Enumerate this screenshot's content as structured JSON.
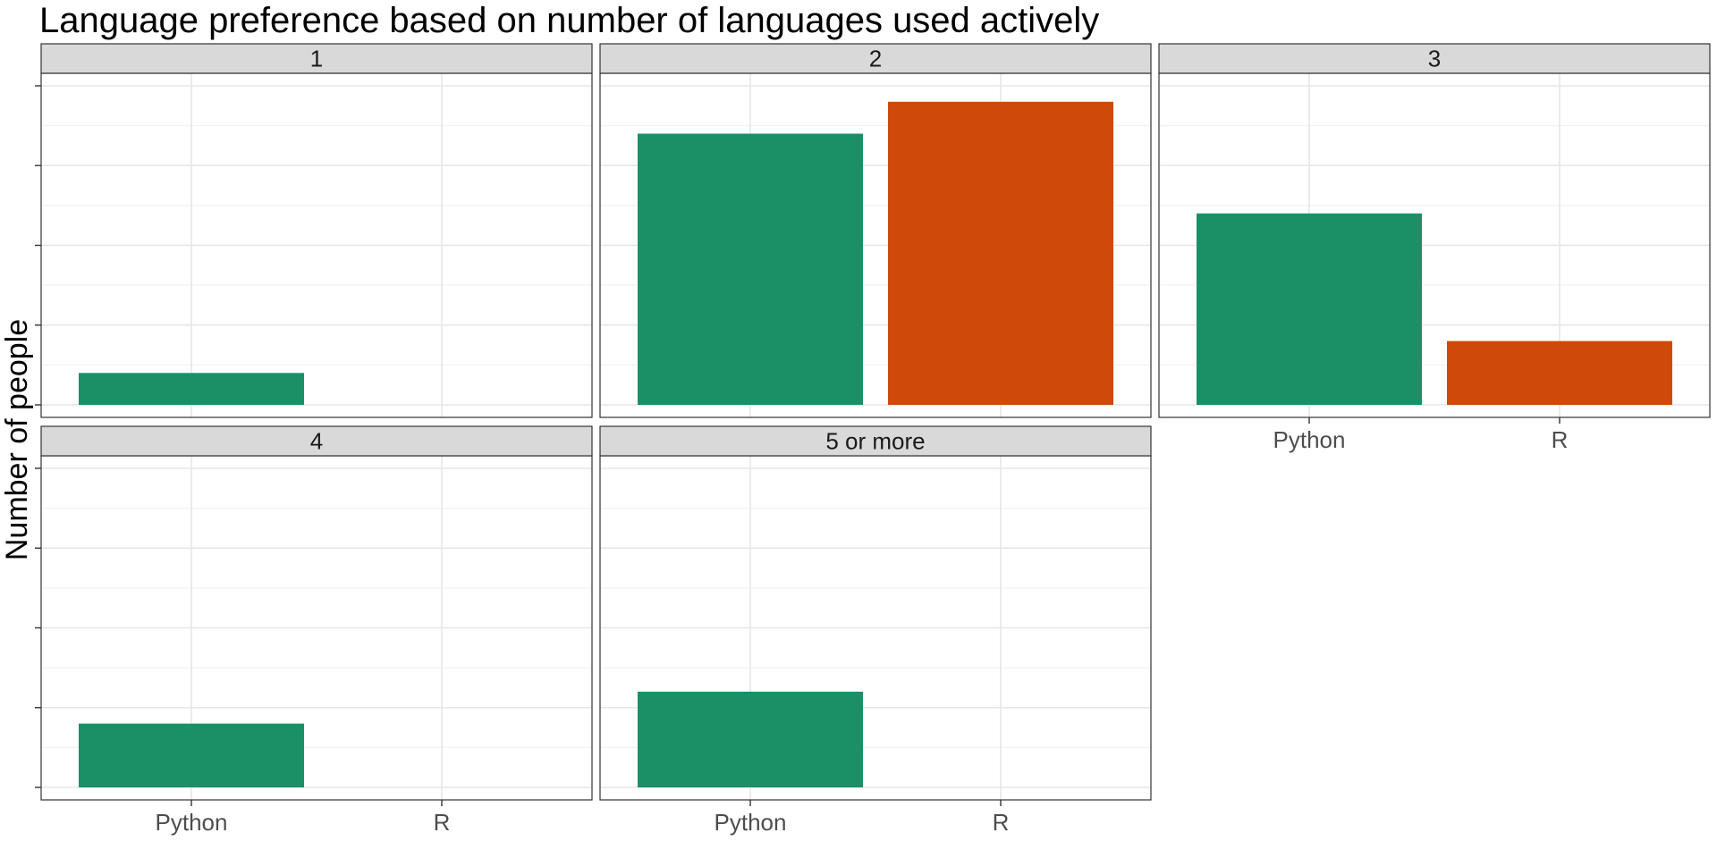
{
  "chart_data": {
    "type": "bar",
    "title": "Language preference based on number of languages used actively",
    "xlabel": "",
    "ylabel": "Number of people",
    "categories": [
      "Python",
      "R"
    ],
    "ylim": [
      0,
      20
    ],
    "y_tick_labels_shown": false,
    "grid": true,
    "facet_wrap": {
      "ncol": 3
    },
    "colors": {
      "Python": "#1b9066",
      "R": "#cf4a0a"
    },
    "panels": [
      {
        "label": "1",
        "values": [
          2,
          0
        ]
      },
      {
        "label": "2",
        "values": [
          17,
          19
        ]
      },
      {
        "label": "3",
        "values": [
          12,
          4
        ]
      },
      {
        "label": "4",
        "values": [
          4,
          0
        ]
      },
      {
        "label": "5 or more",
        "values": [
          6,
          0
        ]
      }
    ]
  }
}
